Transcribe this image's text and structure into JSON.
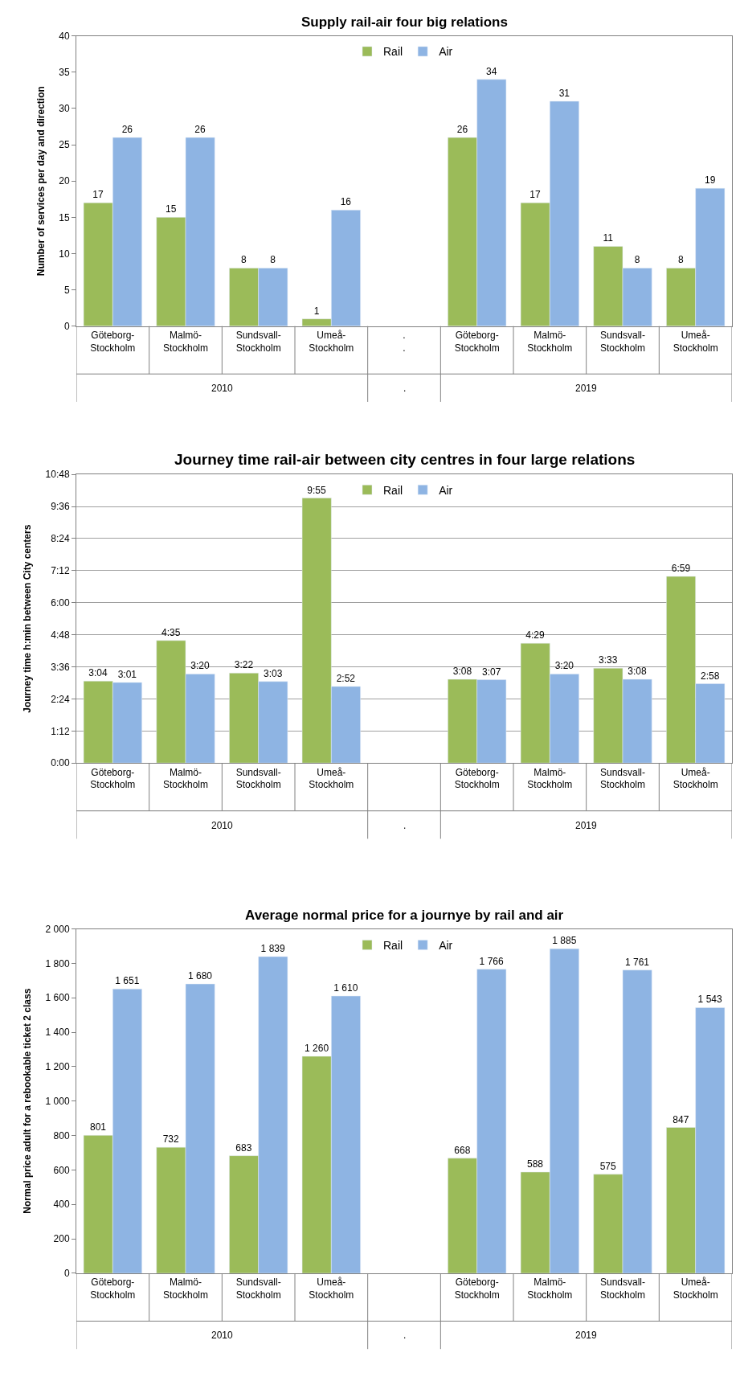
{
  "chart_data": [
    {
      "type": "bar",
      "title": "Supply rail-air four big relations",
      "ylabel": "Number of services per day and direction",
      "categories": [
        "Göteborg-\nStockholm",
        "Malmö-\nStockholm",
        "Sundsvall-\nStockholm",
        "Umeå-\nStockholm",
        ".\n.",
        "Göteborg-\nStockholm",
        "Malmö-\nStockholm",
        "Sundsvall-\nStockholm",
        "Umeå-\nStockholm"
      ],
      "series": [
        {
          "name": "Rail",
          "color": "#9bbb59",
          "values": [
            17,
            15,
            8,
            1,
            null,
            26,
            17,
            11,
            8
          ]
        },
        {
          "name": "Air",
          "color": "#8eb4e3",
          "values": [
            26,
            26,
            8,
            16,
            null,
            34,
            31,
            8,
            19
          ]
        }
      ],
      "ylim": [
        0,
        40
      ],
      "yticks": [
        0,
        5,
        10,
        15,
        20,
        25,
        30,
        35,
        40
      ],
      "data_labels": true,
      "legend": "top",
      "grid": false,
      "annotations": [
        "2010",
        ".",
        "2019"
      ]
    },
    {
      "type": "bar",
      "title": "Journey time rail-air between city centres in four large relations",
      "ylabel": "Journey time h:min between City centers",
      "categories": [
        "Göteborg-\nStockholm",
        "Malmö-\nStockholm",
        "Sundsvall-\nStockholm",
        "Umeå-\nStockholm",
        null,
        "Göteborg-\nStockholm",
        "Malmö-\nStockholm",
        "Sundsvall-\nStockholm",
        "Umeå-\nStockholm"
      ],
      "series": [
        {
          "name": "Rail",
          "color": "#9bbb59",
          "values": [
            184,
            275,
            202,
            595,
            null,
            188,
            269,
            213,
            419
          ],
          "value_labels": [
            "3:04",
            "4:35",
            "3:22",
            "9:55",
            null,
            "3:08",
            "4:29",
            "3:33",
            "6:59"
          ]
        },
        {
          "name": "Air",
          "color": "#8eb4e3",
          "values": [
            181,
            200,
            183,
            172,
            null,
            187,
            200,
            188,
            178
          ],
          "value_labels": [
            "3:01",
            "3:20",
            "3:03",
            "2:52",
            null,
            "3:07",
            "3:20",
            "3:08",
            "2:58"
          ]
        }
      ],
      "ylim": [
        0,
        648
      ],
      "yticks": [
        {
          "value": 0,
          "label": "0:00"
        },
        {
          "value": 72,
          "label": "1:12"
        },
        {
          "value": 144,
          "label": "2:24"
        },
        {
          "value": 216,
          "label": "3:36"
        },
        {
          "value": 288,
          "label": "4:48"
        },
        {
          "value": 360,
          "label": "6:00"
        },
        {
          "value": 432,
          "label": "7:12"
        },
        {
          "value": 504,
          "label": "8:24"
        },
        {
          "value": 576,
          "label": "9:36"
        },
        {
          "value": 648,
          "label": "10:48"
        }
      ],
      "legend": "top",
      "grid": "y",
      "annotations": [
        "2010",
        ".",
        "2019"
      ]
    },
    {
      "type": "bar",
      "title": "Average normal price for a journye by rail and air",
      "ylabel": "Normal price adult for a rebookable ticket 2 class",
      "categories": [
        "Göteborg-\nStockholm",
        "Malmö-\nStockholm",
        "Sundsvall-\nStockholm",
        "Umeå-\nStockholm",
        null,
        "Göteborg-\nStockholm",
        "Malmö-\nStockholm",
        "Sundsvall-\nStockholm",
        "Umeå-\nStockholm"
      ],
      "series": [
        {
          "name": "Rail",
          "color": "#9bbb59",
          "values": [
            801,
            732,
            683,
            1260,
            null,
            668,
            588,
            575,
            847
          ],
          "value_labels": [
            "801",
            "732",
            "683",
            "1 260",
            null,
            "668",
            "588",
            "575",
            "847"
          ]
        },
        {
          "name": "Air",
          "color": "#8eb4e3",
          "values": [
            1651,
            1680,
            1839,
            1610,
            null,
            1766,
            1885,
            1761,
            1543
          ],
          "value_labels": [
            "1 651",
            "1 680",
            "1 839",
            "1 610",
            null,
            "1 766",
            "1 885",
            "1 761",
            "1 543"
          ]
        }
      ],
      "ylim": [
        0,
        2000
      ],
      "yticks": [
        0,
        {
          "value": 200,
          "label": "200"
        },
        {
          "value": 400,
          "label": "400"
        },
        {
          "value": 600,
          "label": "600"
        },
        {
          "value": 800,
          "label": "800"
        },
        {
          "value": 1000,
          "label": "1 000"
        },
        {
          "value": 1200,
          "label": "1 200"
        },
        {
          "value": 1400,
          "label": "1 400"
        },
        {
          "value": 1600,
          "label": "1 600"
        },
        {
          "value": 1800,
          "label": "1 800"
        },
        {
          "value": 2000,
          "label": "2 000"
        }
      ],
      "legend": "top",
      "grid": false,
      "annotations": [
        "2010",
        ".",
        "2019"
      ]
    }
  ]
}
